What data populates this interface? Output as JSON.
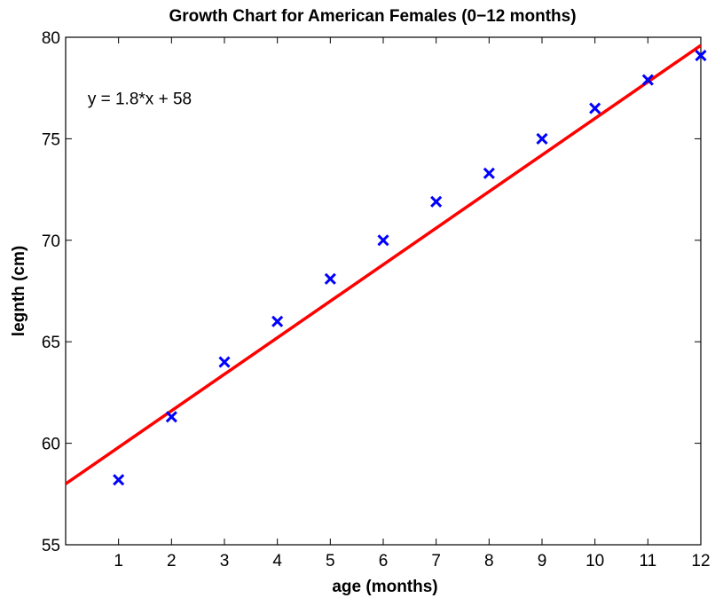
{
  "chart_data": {
    "type": "scatter",
    "title": "Growth Chart for American Females  (0−12 months)",
    "xlabel": "age (months)",
    "ylabel": "legnth (cm)",
    "xlim": [
      0,
      12
    ],
    "ylim": [
      55,
      80
    ],
    "xticks": [
      1,
      2,
      3,
      4,
      5,
      6,
      7,
      8,
      9,
      10,
      11,
      12
    ],
    "yticks": [
      55,
      60,
      65,
      70,
      75,
      80
    ],
    "grid": false,
    "series": [
      {
        "kind": "scatter",
        "marker": "x",
        "color": "#0000ff",
        "x": [
          1,
          2,
          3,
          4,
          5,
          6,
          7,
          8,
          9,
          10,
          11,
          12
        ],
        "y": [
          58.2,
          61.3,
          64.0,
          66.0,
          68.1,
          70.0,
          71.9,
          73.3,
          75.0,
          76.5,
          77.9,
          79.1
        ]
      },
      {
        "kind": "line",
        "color": "#ff0000",
        "slope": 1.8,
        "intercept": 58,
        "x": [
          0,
          12
        ],
        "y": [
          58,
          79.6
        ]
      }
    ],
    "annotations": [
      {
        "text": "y = 1.8*x + 58",
        "x": 0.5,
        "y": 77
      }
    ]
  }
}
